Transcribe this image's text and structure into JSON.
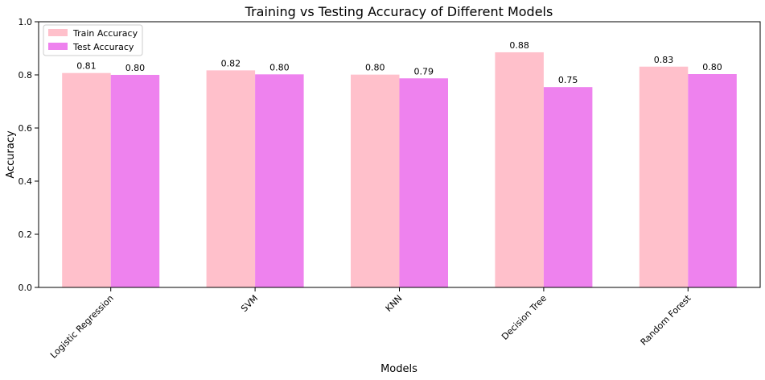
{
  "chart_data": {
    "type": "bar",
    "title": "Training vs Testing Accuracy of Different Models",
    "xlabel": "Models",
    "ylabel": "Accuracy",
    "ylim": [
      0,
      1.0
    ],
    "yticks": [
      "0.0",
      "0.2",
      "0.4",
      "0.6",
      "0.8",
      "1.0"
    ],
    "grid": false,
    "legend_position": "top-left",
    "categories": [
      "Logistic Regression",
      "SVM",
      "KNN",
      "Decision Tree",
      "Random Forest"
    ],
    "series": [
      {
        "name": "Train Accuracy",
        "color": "#ffc0cb",
        "values": [
          0.807,
          0.817,
          0.801,
          0.885,
          0.831
        ],
        "labels": [
          "0.81",
          "0.82",
          "0.80",
          "0.88",
          "0.83"
        ]
      },
      {
        "name": "Test Accuracy",
        "color": "#ee82ee",
        "values": [
          0.8,
          0.802,
          0.787,
          0.754,
          0.803
        ],
        "labels": [
          "0.80",
          "0.80",
          "0.79",
          "0.75",
          "0.80"
        ]
      }
    ]
  }
}
